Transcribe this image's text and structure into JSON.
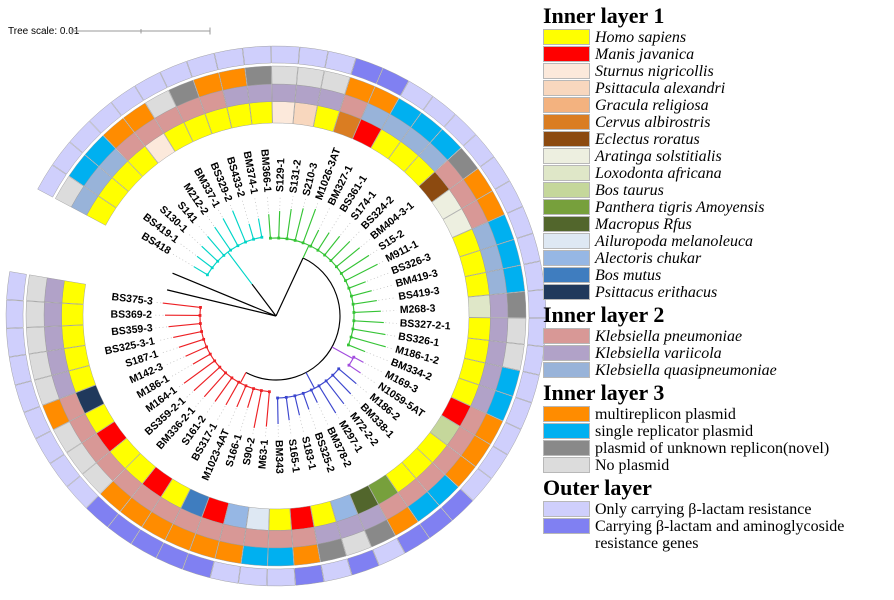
{
  "scale_bar": {
    "label": "Tree scale: 0.01"
  },
  "legend": {
    "sections": [
      {
        "title": "Inner layer 1",
        "italic": true,
        "items": [
          {
            "label": "Homo sapiens",
            "color": "#FFFF00"
          },
          {
            "label": "Manis javanica",
            "color": "#FF0000"
          },
          {
            "label": "Sturnus nigricollis",
            "color": "#FCE9DB"
          },
          {
            "label": "Psittacula alexandri",
            "color": "#F8D7BE"
          },
          {
            "label": "Gracula religiosa",
            "color": "#F3B27F"
          },
          {
            "label": "Cervus albirostris",
            "color": "#DA7D22"
          },
          {
            "label": "Eclectus roratus",
            "color": "#8C4A10"
          },
          {
            "label": "Aratinga solstitialis",
            "color": "#EDEFE0"
          },
          {
            "label": "Loxodonta africana",
            "color": "#DFE7C8"
          },
          {
            "label": "Bos taurus",
            "color": "#C5D79B"
          },
          {
            "label": "Panthera tigris Amoyensis",
            "color": "#77A03C"
          },
          {
            "label": "Macropus Rfus",
            "color": "#52662C"
          },
          {
            "label": "Ailuropoda melanoleuca",
            "color": "#DEE8F3"
          },
          {
            "label": "Alectoris chukar",
            "color": "#96B7E4"
          },
          {
            "label": "Bos mutus",
            "color": "#3F7DBF"
          },
          {
            "label": "Psittacus erithacus",
            "color": "#20395C"
          }
        ]
      },
      {
        "title": "Inner layer 2",
        "italic": true,
        "items": [
          {
            "label": "Klebsiella pneumoniae",
            "color": "#D89896"
          },
          {
            "label": "Klebsiella variicola",
            "color": "#B1A2C8"
          },
          {
            "label": "Klebsiella quasipneumoniae",
            "color": "#98B3D9"
          }
        ]
      },
      {
        "title": "Inner layer 3",
        "italic": false,
        "items": [
          {
            "label": "multireplicon plasmid",
            "color": "#FF8C00"
          },
          {
            "label": "single replicator plasmid",
            "color": "#00B0F0"
          },
          {
            "label": "plasmid of unknown replicon(novel)",
            "color": "#898989"
          },
          {
            "label": "No plasmid",
            "color": "#DCDCDC"
          }
        ]
      },
      {
        "title": "Outer layer",
        "italic": false,
        "items": [
          {
            "label": "Only carrying β-lactam resistance",
            "color": "#CFCFFC"
          },
          {
            "label": "Carrying β-lactam and aminoglycoside resistance genes",
            "color": "#8080F2"
          }
        ]
      }
    ]
  },
  "chart_data": {
    "type": "circular-phylogenetic-tree",
    "title": "",
    "rings_inside_to_outside": [
      "Inner layer 1",
      "Inner layer 2",
      "Inner layer 3",
      "Outer layer"
    ],
    "cluster_colors": {
      "cyan": "#00D5C8",
      "green": "#35C435",
      "purple": "#A24CDE",
      "blue": "#3C46CE",
      "red": "#ED2024",
      "backbone": "#000000"
    },
    "leaves": [
      {
        "label": "BS418",
        "cluster": "cyan",
        "species": "Homo sapiens",
        "lineage": "Klebsiella quasipneumoniae",
        "plasmid": "No plasmid",
        "resistance": "Only carrying β-lactam resistance"
      },
      {
        "label": "BS419-1",
        "cluster": "cyan",
        "species": "Homo sapiens",
        "lineage": "Klebsiella quasipneumoniae",
        "plasmid": "single replicator plasmid",
        "resistance": "Only carrying β-lactam resistance"
      },
      {
        "label": "S130-1",
        "cluster": "cyan",
        "species": "Homo sapiens",
        "lineage": "Klebsiella quasipneumoniae",
        "plasmid": "single replicator plasmid",
        "resistance": "Only carrying β-lactam resistance"
      },
      {
        "label": "S141",
        "cluster": "cyan",
        "species": "Homo sapiens",
        "lineage": "Klebsiella pneumoniae",
        "plasmid": "multireplicon plasmid",
        "resistance": "Only carrying β-lactam resistance"
      },
      {
        "label": "M212-2",
        "cluster": "cyan",
        "species": "Sturnus nigricollis",
        "lineage": "Klebsiella pneumoniae",
        "plasmid": "multireplicon plasmid",
        "resistance": "Only carrying β-lactam resistance"
      },
      {
        "label": "BM337-1",
        "cluster": "cyan",
        "species": "Homo sapiens",
        "lineage": "Klebsiella pneumoniae",
        "plasmid": "No plasmid",
        "resistance": "Only carrying β-lactam resistance"
      },
      {
        "label": "BS329-2",
        "cluster": "cyan",
        "species": "Homo sapiens",
        "lineage": "Klebsiella pneumoniae",
        "plasmid": "plasmid of unknown replicon(novel)",
        "resistance": "Only carrying β-lactam resistance"
      },
      {
        "label": "BS433-2",
        "cluster": "cyan",
        "species": "Homo sapiens",
        "lineage": "Klebsiella pneumoniae",
        "plasmid": "multireplicon plasmid",
        "resistance": "Only carrying β-lactam resistance"
      },
      {
        "label": "BM374-1",
        "cluster": "cyan",
        "species": "Homo sapiens",
        "lineage": "Klebsiella variicola",
        "plasmid": "multireplicon plasmid",
        "resistance": "Only carrying β-lactam resistance"
      },
      {
        "label": "BM366-1",
        "cluster": "green",
        "species": "Homo sapiens",
        "lineage": "Klebsiella variicola",
        "plasmid": "plasmid of unknown replicon(novel)",
        "resistance": "Only carrying β-lactam resistance"
      },
      {
        "label": "S129-1",
        "cluster": "green",
        "species": "Sturnus nigricollis",
        "lineage": "Klebsiella variicola",
        "plasmid": "No plasmid",
        "resistance": "Only carrying β-lactam resistance"
      },
      {
        "label": "S131-2",
        "cluster": "green",
        "species": "Psittacula alexandri",
        "lineage": "Klebsiella variicola",
        "plasmid": "No plasmid",
        "resistance": "Only carrying β-lactam resistance"
      },
      {
        "label": "S210-3",
        "cluster": "green",
        "species": "Homo sapiens",
        "lineage": "Klebsiella variicola",
        "plasmid": "No plasmid",
        "resistance": "Only carrying β-lactam resistance"
      },
      {
        "label": "M1026-3AT",
        "cluster": "green",
        "species": "Cervus albirostris",
        "lineage": "Klebsiella pneumoniae",
        "plasmid": "multireplicon plasmid",
        "resistance": "Carrying β-lactam and aminoglycoside resistance genes"
      },
      {
        "label": "BM327-1",
        "cluster": "green",
        "species": "Manis javanica",
        "lineage": "Klebsiella quasipneumoniae",
        "plasmid": "multireplicon plasmid",
        "resistance": "Carrying β-lactam and aminoglycoside resistance genes"
      },
      {
        "label": "BS361-1",
        "cluster": "green",
        "species": "Homo sapiens",
        "lineage": "Klebsiella quasipneumoniae",
        "plasmid": "single replicator plasmid",
        "resistance": "Only carrying β-lactam resistance"
      },
      {
        "label": "S174-1",
        "cluster": "green",
        "species": "Homo sapiens",
        "lineage": "Klebsiella quasipneumoniae",
        "plasmid": "single replicator plasmid",
        "resistance": "Only carrying β-lactam resistance"
      },
      {
        "label": "BS324-2",
        "cluster": "green",
        "species": "Homo sapiens",
        "lineage": "Klebsiella quasipneumoniae",
        "plasmid": "single replicator plasmid",
        "resistance": "Only carrying β-lactam resistance"
      },
      {
        "label": "BM404-3-1",
        "cluster": "green",
        "species": "Eclectus roratus",
        "lineage": "Klebsiella pneumoniae",
        "plasmid": "plasmid of unknown replicon(novel)",
        "resistance": "Only carrying β-lactam resistance"
      },
      {
        "label": "S15-2",
        "cluster": "green",
        "species": "Aratinga solstitialis",
        "lineage": "Klebsiella pneumoniae",
        "plasmid": "multireplicon plasmid",
        "resistance": "Only carrying β-lactam resistance"
      },
      {
        "label": "M911-1",
        "cluster": "green",
        "species": "Aratinga solstitialis",
        "lineage": "Klebsiella pneumoniae",
        "plasmid": "multireplicon plasmid",
        "resistance": "Only carrying β-lactam resistance"
      },
      {
        "label": "BS326-3",
        "cluster": "green",
        "species": "Homo sapiens",
        "lineage": "Klebsiella quasipneumoniae",
        "plasmid": "single replicator plasmid",
        "resistance": "Only carrying β-lactam resistance"
      },
      {
        "label": "BM419-3",
        "cluster": "green",
        "species": "Homo sapiens",
        "lineage": "Klebsiella quasipneumoniae",
        "plasmid": "single replicator plasmid",
        "resistance": "Only carrying β-lactam resistance"
      },
      {
        "label": "BS419-3",
        "cluster": "green",
        "species": "Homo sapiens",
        "lineage": "Klebsiella quasipneumoniae",
        "plasmid": "single replicator plasmid",
        "resistance": "Only carrying β-lactam resistance"
      },
      {
        "label": "M268-3",
        "cluster": "green",
        "species": "Loxodonta africana",
        "lineage": "Klebsiella variicola",
        "plasmid": "plasmid of unknown replicon(novel)",
        "resistance": "Only carrying β-lactam resistance"
      },
      {
        "label": "BS327-2-1",
        "cluster": "green",
        "species": "Homo sapiens",
        "lineage": "Klebsiella variicola",
        "plasmid": "No plasmid",
        "resistance": "Only carrying β-lactam resistance"
      },
      {
        "label": "BS326-1",
        "cluster": "green",
        "species": "Homo sapiens",
        "lineage": "Klebsiella variicola",
        "plasmid": "No plasmid",
        "resistance": "Only carrying β-lactam resistance"
      },
      {
        "label": "M186-1-2",
        "cluster": "green",
        "species": "Homo sapiens",
        "lineage": "Klebsiella variicola",
        "plasmid": "single replicator plasmid",
        "resistance": "Only carrying β-lactam resistance"
      },
      {
        "label": "BM334-2",
        "cluster": "green",
        "species": "Homo sapiens",
        "lineage": "Klebsiella variicola",
        "plasmid": "single replicator plasmid",
        "resistance": "Only carrying β-lactam resistance"
      },
      {
        "label": "M169-3",
        "cluster": "purple",
        "species": "Manis javanica",
        "lineage": "Klebsiella pneumoniae",
        "plasmid": "multireplicon plasmid",
        "resistance": "Only carrying β-lactam resistance"
      },
      {
        "label": "N1059-5AT",
        "cluster": "purple",
        "species": "Bos taurus",
        "lineage": "Klebsiella pneumoniae",
        "plasmid": "multireplicon plasmid",
        "resistance": "Only carrying β-lactam resistance"
      },
      {
        "label": "M186-2",
        "cluster": "blue",
        "species": "Homo sapiens",
        "lineage": "Klebsiella pneumoniae",
        "plasmid": "multireplicon plasmid",
        "resistance": "Only carrying β-lactam resistance"
      },
      {
        "label": "BM338-1",
        "cluster": "blue",
        "species": "Homo sapiens",
        "lineage": "Klebsiella pneumoniae",
        "plasmid": "single replicator plasmid",
        "resistance": "Carrying β-lactam and aminoglycoside resistance genes"
      },
      {
        "label": "M72-2-2",
        "cluster": "blue",
        "species": "Homo sapiens",
        "lineage": "Klebsiella pneumoniae",
        "plasmid": "single replicator plasmid",
        "resistance": "Carrying β-lactam and aminoglycoside resistance genes"
      },
      {
        "label": "M297-1",
        "cluster": "blue",
        "species": "Panthera tigris Amoyensis",
        "lineage": "Klebsiella pneumoniae",
        "plasmid": "multireplicon plasmid",
        "resistance": "Carrying β-lactam and aminoglycoside resistance genes"
      },
      {
        "label": "BM378-2",
        "cluster": "blue",
        "species": "Macropus Rfus",
        "lineage": "Klebsiella variicola",
        "plasmid": "plasmid of unknown replicon(novel)",
        "resistance": "Only carrying β-lactam resistance"
      },
      {
        "label": "BS325-2",
        "cluster": "blue",
        "species": "Alectoris chukar",
        "lineage": "Klebsiella variicola",
        "plasmid": "No plasmid",
        "resistance": "Carrying β-lactam and aminoglycoside resistance genes"
      },
      {
        "label": "S183-1",
        "cluster": "blue",
        "species": "Homo sapiens",
        "lineage": "Klebsiella variicola",
        "plasmid": "plasmid of unknown replicon(novel)",
        "resistance": "Only carrying β-lactam resistance"
      },
      {
        "label": "S165-1",
        "cluster": "blue",
        "species": "Manis javanica",
        "lineage": "Klebsiella pneumoniae",
        "plasmid": "multireplicon plasmid",
        "resistance": "Carrying β-lactam and aminoglycoside resistance genes"
      },
      {
        "label": "BM343",
        "cluster": "blue",
        "species": "Homo sapiens",
        "lineage": "Klebsiella pneumoniae",
        "plasmid": "single replicator plasmid",
        "resistance": "Only carrying β-lactam resistance"
      },
      {
        "label": "M63-1",
        "cluster": "red",
        "species": "Ailuropoda melanoleuca",
        "lineage": "Klebsiella pneumoniae",
        "plasmid": "single replicator plasmid",
        "resistance": "Only carrying β-lactam resistance"
      },
      {
        "label": "S90-2",
        "cluster": "red",
        "species": "Alectoris chukar",
        "lineage": "Klebsiella pneumoniae",
        "plasmid": "multireplicon plasmid",
        "resistance": "Only carrying β-lactam resistance"
      },
      {
        "label": "S166-1",
        "cluster": "red",
        "species": "Manis javanica",
        "lineage": "Klebsiella pneumoniae",
        "plasmid": "multireplicon plasmid",
        "resistance": "Carrying β-lactam and aminoglycoside resistance genes"
      },
      {
        "label": "M1023-4AT",
        "cluster": "red",
        "species": "Bos mutus",
        "lineage": "Klebsiella pneumoniae",
        "plasmid": "multireplicon plasmid",
        "resistance": "Carrying β-lactam and aminoglycoside resistance genes"
      },
      {
        "label": "BS317-1",
        "cluster": "red",
        "species": "Homo sapiens",
        "lineage": "Klebsiella pneumoniae",
        "plasmid": "multireplicon plasmid",
        "resistance": "Carrying β-lactam and aminoglycoside resistance genes"
      },
      {
        "label": "S161-2",
        "cluster": "red",
        "species": "Manis javanica",
        "lineage": "Klebsiella pneumoniae",
        "plasmid": "multireplicon plasmid",
        "resistance": "Carrying β-lactam and aminoglycoside resistance genes"
      },
      {
        "label": "BM336-2-1",
        "cluster": "red",
        "species": "Homo sapiens",
        "lineage": "Klebsiella pneumoniae",
        "plasmid": "multireplicon plasmid",
        "resistance": "Carrying β-lactam and aminoglycoside resistance genes"
      },
      {
        "label": "BS359-2-1",
        "cluster": "red",
        "species": "Homo sapiens",
        "lineage": "Klebsiella pneumoniae",
        "plasmid": "No plasmid",
        "resistance": "Only carrying β-lactam resistance"
      },
      {
        "label": "M164-1",
        "cluster": "red",
        "species": "Manis javanica",
        "lineage": "Klebsiella pneumoniae",
        "plasmid": "No plasmid",
        "resistance": "Only carrying β-lactam resistance"
      },
      {
        "label": "M186-1",
        "cluster": "red",
        "species": "Homo sapiens",
        "lineage": "Klebsiella pneumoniae",
        "plasmid": "No plasmid",
        "resistance": "Only carrying β-lactam resistance"
      },
      {
        "label": "M142-3",
        "cluster": "red",
        "species": "Psittacus erithacus",
        "lineage": "Klebsiella pneumoniae",
        "plasmid": "multireplicon plasmid",
        "resistance": "Only carrying β-lactam resistance"
      },
      {
        "label": "S187-1",
        "cluster": "red",
        "species": "Homo sapiens",
        "lineage": "Klebsiella variicola",
        "plasmid": "No plasmid",
        "resistance": "Only carrying β-lactam resistance"
      },
      {
        "label": "BS325-3-1",
        "cluster": "red",
        "species": "Homo sapiens",
        "lineage": "Klebsiella variicola",
        "plasmid": "No plasmid",
        "resistance": "Only carrying β-lactam resistance"
      },
      {
        "label": "BS359-3",
        "cluster": "red",
        "species": "Homo sapiens",
        "lineage": "Klebsiella variicola",
        "plasmid": "No plasmid",
        "resistance": "Only carrying β-lactam resistance"
      },
      {
        "label": "BS369-2",
        "cluster": "red",
        "species": "Homo sapiens",
        "lineage": "Klebsiella variicola",
        "plasmid": "No plasmid",
        "resistance": "Only carrying β-lactam resistance"
      },
      {
        "label": "BS375-3",
        "cluster": "red",
        "species": "Homo sapiens",
        "lineage": "Klebsiella variicola",
        "plasmid": "No plasmid",
        "resistance": "Only carrying β-lactam resistance"
      }
    ]
  }
}
